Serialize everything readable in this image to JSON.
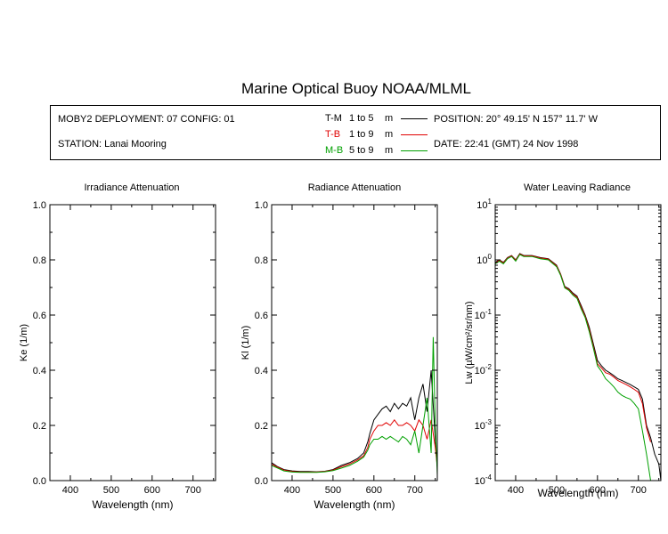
{
  "page": {
    "title": "Marine Optical Buoy NOAA/MLML"
  },
  "info": {
    "deployment": "MOBY2 DEPLOYMENT: 07 CONFIG: 01",
    "station": "STATION: Lanai Mooring",
    "position": "POSITION: 20° 49.15' N   157° 11.7' W",
    "date": "DATE: 22:41 (GMT) 24 Nov 1998",
    "legend": [
      {
        "code": "T-M",
        "range": "1 to 5",
        "unit": "m",
        "color": "#000000"
      },
      {
        "code": "T-B",
        "range": "1 to 9",
        "unit": "m",
        "color": "#e00000"
      },
      {
        "code": "M-B",
        "range": "5 to 9",
        "unit": "m",
        "color": "#00a000"
      }
    ]
  },
  "chart_data": [
    {
      "type": "line",
      "title": "Irradiance Attenuation",
      "xlabel": "Wavelength (nm)",
      "ylabel": "Ke  (1/m)",
      "xlim": [
        350,
        755
      ],
      "ylim": [
        0,
        1.0
      ],
      "xticks": [
        400,
        500,
        600,
        700
      ],
      "yticks": [
        "0.0",
        "0.2",
        "0.4",
        "0.6",
        "0.8",
        "1.0"
      ],
      "series": []
    },
    {
      "type": "line",
      "title": "Radiance Attenuation",
      "xlabel": "Wavelength (nm)",
      "ylabel": "Kl  (1/m)",
      "xlim": [
        350,
        755
      ],
      "ylim": [
        0,
        1.0
      ],
      "xticks": [
        400,
        500,
        600,
        700
      ],
      "yticks": [
        "0.0",
        "0.2",
        "0.4",
        "0.6",
        "0.8",
        "1.0"
      ],
      "series": [
        {
          "name": "T-M",
          "color": "#000000",
          "x": [
            350,
            365,
            380,
            400,
            420,
            440,
            460,
            480,
            500,
            520,
            540,
            560,
            575,
            585,
            590,
            600,
            610,
            620,
            630,
            640,
            650,
            660,
            670,
            680,
            690,
            700,
            710,
            720,
            730,
            740,
            750,
            755
          ],
          "y": [
            0.065,
            0.05,
            0.04,
            0.035,
            0.033,
            0.033,
            0.032,
            0.034,
            0.04,
            0.055,
            0.065,
            0.08,
            0.1,
            0.14,
            0.17,
            0.22,
            0.24,
            0.26,
            0.27,
            0.25,
            0.28,
            0.26,
            0.28,
            0.27,
            0.3,
            0.22,
            0.3,
            0.35,
            0.25,
            0.4,
            0.15,
            0.05
          ]
        },
        {
          "name": "T-B",
          "color": "#e00000",
          "x": [
            350,
            365,
            380,
            400,
            420,
            440,
            460,
            480,
            500,
            520,
            540,
            560,
            575,
            585,
            590,
            600,
            610,
            620,
            630,
            640,
            650,
            660,
            670,
            680,
            690,
            700,
            710,
            720,
            730,
            740,
            750,
            755
          ],
          "y": [
            0.06,
            0.048,
            0.038,
            0.033,
            0.031,
            0.031,
            0.031,
            0.033,
            0.038,
            0.05,
            0.06,
            0.075,
            0.09,
            0.12,
            0.15,
            0.18,
            0.2,
            0.2,
            0.21,
            0.2,
            0.22,
            0.2,
            0.2,
            0.21,
            0.2,
            0.18,
            0.22,
            0.2,
            0.15,
            0.22,
            0.12,
            0.05
          ]
        },
        {
          "name": "M-B",
          "color": "#00a000",
          "x": [
            350,
            365,
            380,
            400,
            420,
            440,
            460,
            480,
            500,
            520,
            540,
            560,
            575,
            585,
            590,
            600,
            610,
            620,
            630,
            640,
            650,
            660,
            670,
            680,
            690,
            700,
            710,
            720,
            730,
            740,
            745,
            750,
            755
          ],
          "y": [
            0.055,
            0.045,
            0.035,
            0.031,
            0.03,
            0.03,
            0.03,
            0.032,
            0.036,
            0.045,
            0.055,
            0.07,
            0.085,
            0.11,
            0.13,
            0.15,
            0.15,
            0.16,
            0.15,
            0.16,
            0.15,
            0.14,
            0.16,
            0.15,
            0.13,
            0.18,
            0.1,
            0.2,
            0.3,
            0.1,
            0.52,
            0.2,
            0.02
          ]
        }
      ]
    },
    {
      "type": "line",
      "title": "Water Leaving Radiance",
      "xlabel": "Wavelength (nm)",
      "ylabel": "Lw  (µW/cm²/sr/nm)",
      "xscale": "linear",
      "yscale": "log",
      "xlim": [
        350,
        755
      ],
      "ylim": [
        0.0001,
        10
      ],
      "xticks": [
        400,
        500,
        600,
        700
      ],
      "yticks": [
        {
          "base": "10",
          "exp": "1"
        },
        {
          "base": "10",
          "exp": "0"
        },
        {
          "base": "10",
          "exp": "-1"
        },
        {
          "base": "10",
          "exp": "-2"
        },
        {
          "base": "10",
          "exp": "-3"
        },
        {
          "base": "10",
          "exp": "-4"
        }
      ],
      "series": [
        {
          "name": "T-M",
          "color": "#000000",
          "x": [
            350,
            360,
            370,
            380,
            390,
            400,
            410,
            420,
            440,
            460,
            480,
            500,
            510,
            520,
            530,
            540,
            550,
            560,
            570,
            580,
            590,
            600,
            610,
            620,
            630,
            640,
            650,
            660,
            670,
            680,
            690,
            700,
            710,
            720,
            730,
            740,
            750,
            755
          ],
          "y": [
            0.9,
            1.0,
            0.9,
            1.1,
            1.2,
            1.0,
            1.3,
            1.2,
            1.2,
            1.1,
            1.05,
            0.8,
            0.55,
            0.33,
            0.3,
            0.25,
            0.22,
            0.15,
            0.1,
            0.06,
            0.03,
            0.015,
            0.012,
            0.01,
            0.009,
            0.008,
            0.007,
            0.0065,
            0.006,
            0.0055,
            0.005,
            0.0045,
            0.003,
            0.001,
            0.0006,
            0.0003,
            0.0002,
            0.0001
          ]
        },
        {
          "name": "T-B",
          "color": "#e00000",
          "x": [
            350,
            360,
            370,
            380,
            390,
            400,
            410,
            420,
            440,
            460,
            480,
            500,
            510,
            520,
            530,
            540,
            550,
            560,
            570,
            580,
            590,
            600,
            610,
            620,
            630,
            640,
            650,
            660,
            670,
            680,
            690,
            700,
            710,
            720,
            730
          ],
          "y": [
            0.88,
            0.98,
            0.88,
            1.08,
            1.18,
            0.98,
            1.28,
            1.18,
            1.18,
            1.08,
            1.03,
            0.78,
            0.54,
            0.32,
            0.29,
            0.24,
            0.21,
            0.14,
            0.095,
            0.055,
            0.027,
            0.013,
            0.011,
            0.009,
            0.0085,
            0.0075,
            0.0065,
            0.006,
            0.0055,
            0.005,
            0.0045,
            0.004,
            0.0025,
            0.0009,
            0.0005
          ]
        },
        {
          "name": "M-B",
          "color": "#00a000",
          "x": [
            350,
            360,
            370,
            380,
            390,
            400,
            410,
            420,
            440,
            460,
            480,
            500,
            510,
            520,
            530,
            540,
            550,
            560,
            570,
            580,
            590,
            600,
            610,
            620,
            630,
            640,
            650,
            660,
            670,
            680,
            690,
            700,
            710,
            720,
            730
          ],
          "y": [
            0.85,
            0.95,
            0.85,
            1.05,
            1.15,
            0.95,
            1.25,
            1.15,
            1.15,
            1.05,
            1.0,
            0.75,
            0.52,
            0.31,
            0.28,
            0.23,
            0.2,
            0.13,
            0.09,
            0.05,
            0.025,
            0.012,
            0.0095,
            0.007,
            0.006,
            0.005,
            0.004,
            0.0035,
            0.0032,
            0.003,
            0.0025,
            0.002,
            0.0008,
            0.0003,
            0.0001
          ]
        }
      ]
    }
  ]
}
